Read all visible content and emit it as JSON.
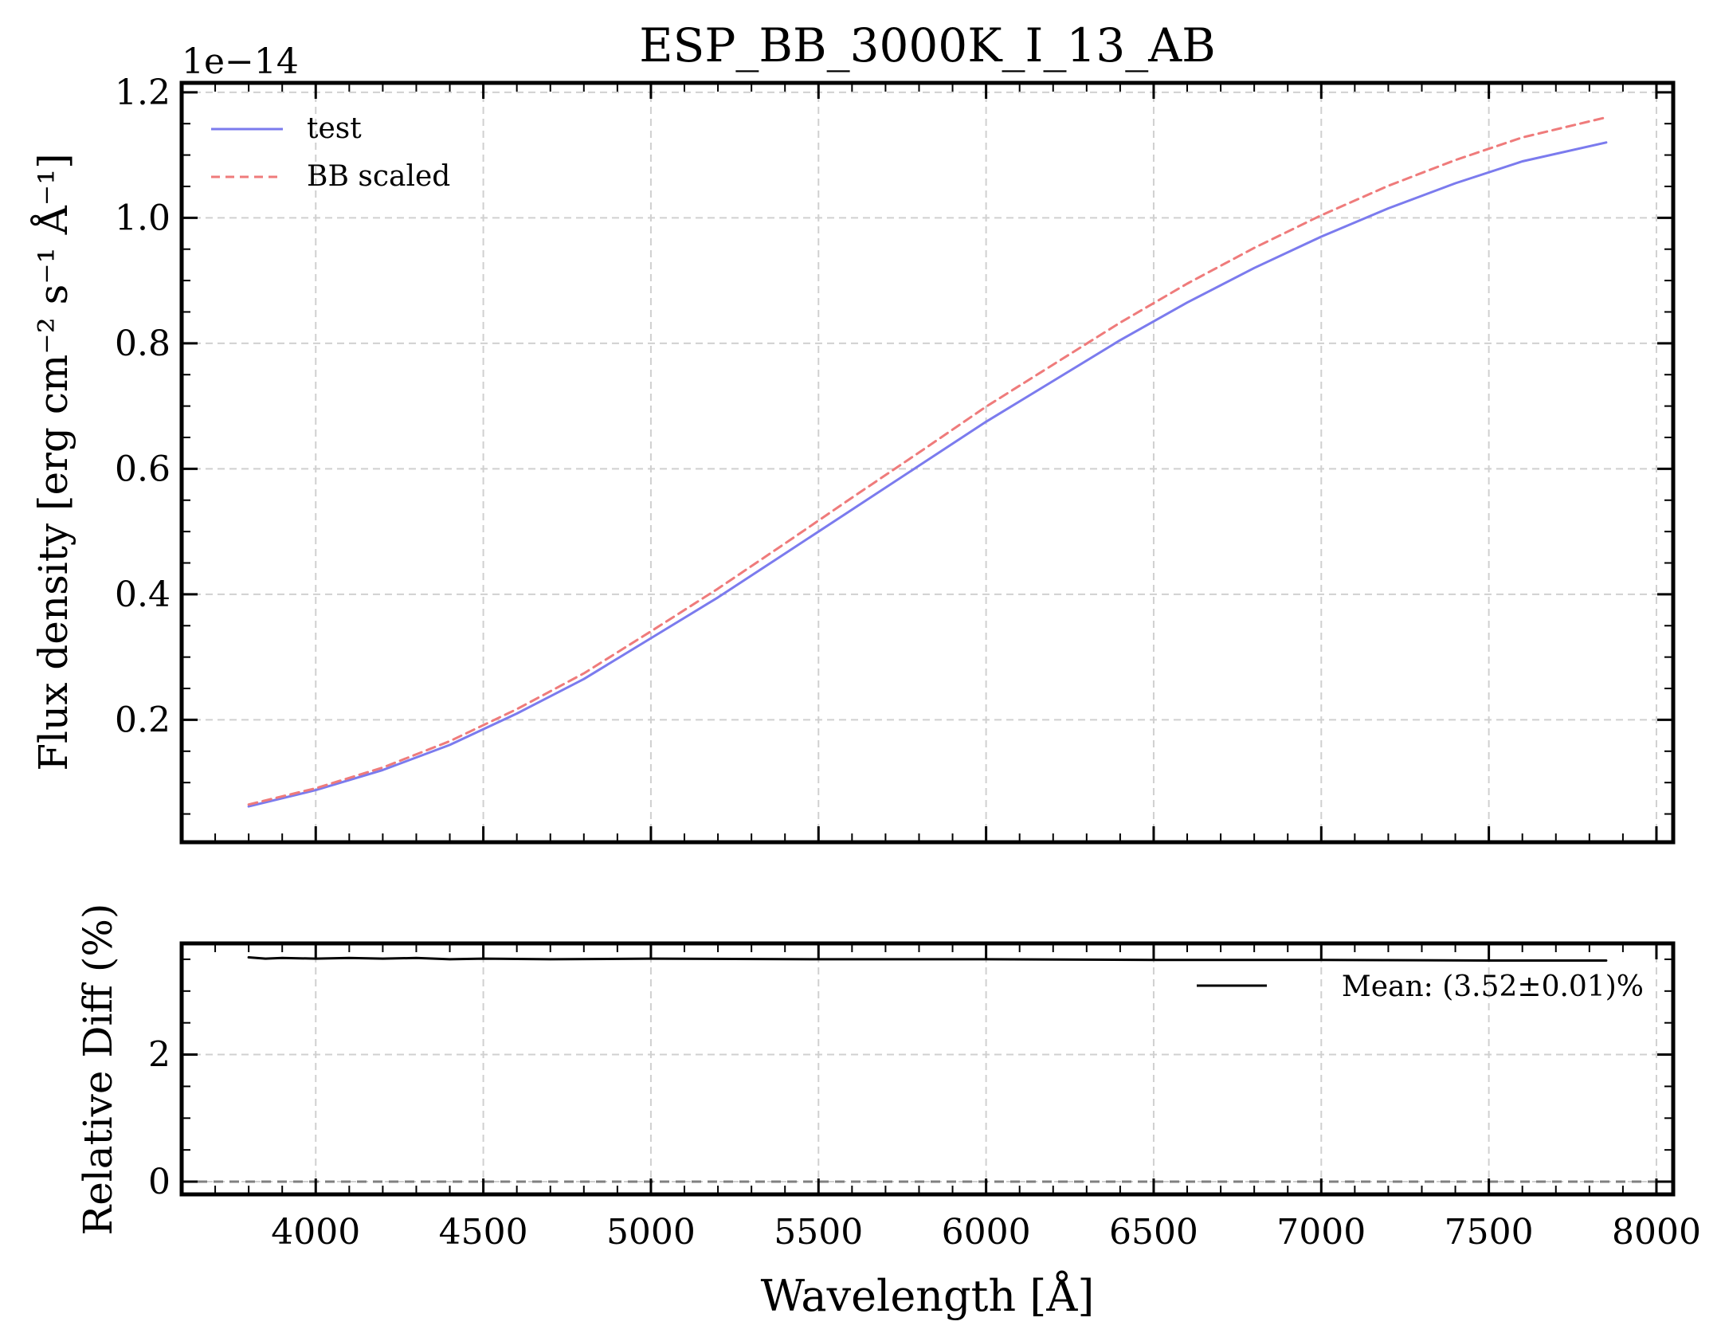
{
  "chart_data": [
    {
      "type": "line",
      "title": "ESP_BB_3000K_I_13_AB",
      "ylabel": "Flux density [erg cm⁻² s⁻¹ Å⁻¹]",
      "offset_text": "1e−14",
      "xlim": [
        3600,
        8050
      ],
      "ylim": [
        0.005,
        1.215
      ],
      "x_ticks": [
        4000,
        4500,
        5000,
        5500,
        6000,
        6500,
        7000,
        7500,
        8000
      ],
      "y_ticks": [
        0.2,
        0.4,
        0.6,
        0.8,
        1.0,
        1.2
      ],
      "y_tick_labels": [
        "0.2",
        "0.4",
        "0.6",
        "0.8",
        "1.0",
        "1.2"
      ],
      "grid": true,
      "legend_position": "top-left",
      "series": [
        {
          "name": "test",
          "color": "#7b7bee",
          "style": "solid",
          "x": [
            3800,
            4000,
            4200,
            4400,
            4600,
            4800,
            5000,
            5200,
            5400,
            5600,
            5800,
            6000,
            6200,
            6400,
            6600,
            6800,
            7000,
            7200,
            7400,
            7600,
            7850
          ],
          "y": [
            0.062,
            0.088,
            0.12,
            0.16,
            0.21,
            0.265,
            0.33,
            0.395,
            0.465,
            0.535,
            0.605,
            0.675,
            0.74,
            0.805,
            0.865,
            0.92,
            0.97,
            1.015,
            1.055,
            1.09,
            1.12
          ]
        },
        {
          "name": "BB scaled",
          "color": "#ef7b7b",
          "style": "dashed",
          "x": [
            3800,
            4000,
            4200,
            4400,
            4600,
            4800,
            5000,
            5200,
            5400,
            5600,
            5800,
            6000,
            6200,
            6400,
            6600,
            6800,
            7000,
            7200,
            7400,
            7600,
            7850
          ],
          "y": [
            0.065,
            0.091,
            0.124,
            0.166,
            0.217,
            0.274,
            0.341,
            0.409,
            0.481,
            0.554,
            0.626,
            0.699,
            0.766,
            0.833,
            0.895,
            0.952,
            1.004,
            1.051,
            1.092,
            1.128,
            1.16
          ]
        }
      ]
    },
    {
      "type": "line",
      "xlabel": "Wavelength [Å]",
      "ylabel": "Relative Diff (%)",
      "xlim": [
        3600,
        8050
      ],
      "ylim": [
        -0.2,
        3.75
      ],
      "x_ticks": [
        4000,
        4500,
        5000,
        5500,
        6000,
        6500,
        7000,
        7500,
        8000
      ],
      "y_ticks": [
        0,
        2
      ],
      "y_tick_labels": [
        "0",
        "2"
      ],
      "grid": true,
      "legend_position": "top-right",
      "reference_line": 0,
      "series": [
        {
          "name": "Mean: (3.52±0.01)%",
          "color": "#000000",
          "style": "solid",
          "x": [
            3800,
            3850,
            3900,
            4000,
            4100,
            4200,
            4300,
            4400,
            4500,
            4700,
            5000,
            5500,
            6000,
            6500,
            7000,
            7500,
            7850
          ],
          "y": [
            3.53,
            3.51,
            3.52,
            3.51,
            3.52,
            3.51,
            3.52,
            3.5,
            3.51,
            3.5,
            3.51,
            3.5,
            3.5,
            3.49,
            3.49,
            3.48,
            3.48
          ]
        }
      ]
    }
  ]
}
